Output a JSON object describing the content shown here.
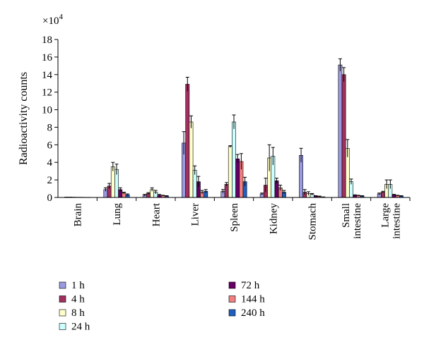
{
  "chart_data": {
    "type": "bar",
    "ylabel": "Radioactivity counts",
    "yscale_note": "×10",
    "yscale_exp": "4",
    "ylim": [
      0,
      18
    ],
    "yticks": [
      0,
      2,
      4,
      6,
      8,
      10,
      12,
      14,
      16,
      18
    ],
    "grid": false,
    "legend_position": "bottom",
    "categories": [
      [
        "Brain"
      ],
      [
        "Lung"
      ],
      [
        "Heart"
      ],
      [
        "Liver"
      ],
      [
        "Spleen"
      ],
      [
        "Kidney"
      ],
      [
        "Stomach"
      ],
      [
        "Small",
        "intestine"
      ],
      [
        "Large",
        "intestine"
      ]
    ],
    "series": [
      {
        "name": "1 h",
        "color": "#9a9ae0",
        "values": [
          0.05,
          0.9,
          0.25,
          6.2,
          0.7,
          0.4,
          4.8,
          15.1,
          0.4
        ],
        "errors": [
          0.02,
          0.2,
          0.1,
          1.3,
          0.2,
          0.1,
          0.8,
          0.7,
          0.1
        ]
      },
      {
        "name": "4 h",
        "color": "#a0305e",
        "values": [
          0.05,
          1.3,
          0.45,
          12.9,
          1.5,
          1.4,
          0.6,
          14.0,
          0.6
        ],
        "errors": [
          0.02,
          0.3,
          0.1,
          0.8,
          0.2,
          0.8,
          0.3,
          0.8,
          0.1
        ]
      },
      {
        "name": "8 h",
        "color": "#ffffcc",
        "values": [
          0.04,
          3.5,
          0.9,
          8.6,
          5.8,
          4.5,
          0.45,
          5.6,
          1.5
        ],
        "errors": [
          0.02,
          0.5,
          0.2,
          0.7,
          0.1,
          1.5,
          0.2,
          1.0,
          0.5
        ]
      },
      {
        "name": "24 h",
        "color": "#ccffff",
        "values": [
          0.03,
          3.2,
          0.6,
          3.1,
          8.6,
          4.7,
          0.35,
          1.8,
          1.5
        ],
        "errors": [
          0.02,
          0.6,
          0.2,
          0.5,
          0.8,
          1.0,
          0.1,
          0.3,
          0.5
        ]
      },
      {
        "name": "72 h",
        "color": "#660066",
        "values": [
          0.03,
          0.9,
          0.25,
          1.8,
          4.4,
          1.9,
          0.15,
          0.25,
          0.3
        ],
        "errors": [
          0.02,
          0.2,
          0.1,
          0.6,
          0.5,
          0.3,
          0.05,
          0.05,
          0.05
        ]
      },
      {
        "name": "144 h",
        "color": "#f08080",
        "values": [
          0.02,
          0.5,
          0.2,
          0.6,
          4.1,
          1.1,
          0.1,
          0.2,
          0.2
        ],
        "errors": [
          0.01,
          0.1,
          0.05,
          0.2,
          0.9,
          0.3,
          0.05,
          0.05,
          0.05
        ]
      },
      {
        "name": "240 h",
        "color": "#1f5fbf",
        "values": [
          0.02,
          0.3,
          0.15,
          0.7,
          1.8,
          0.6,
          0.08,
          0.15,
          0.15
        ],
        "errors": [
          0.01,
          0.1,
          0.05,
          0.2,
          0.5,
          0.2,
          0.03,
          0.05,
          0.05
        ]
      }
    ]
  }
}
